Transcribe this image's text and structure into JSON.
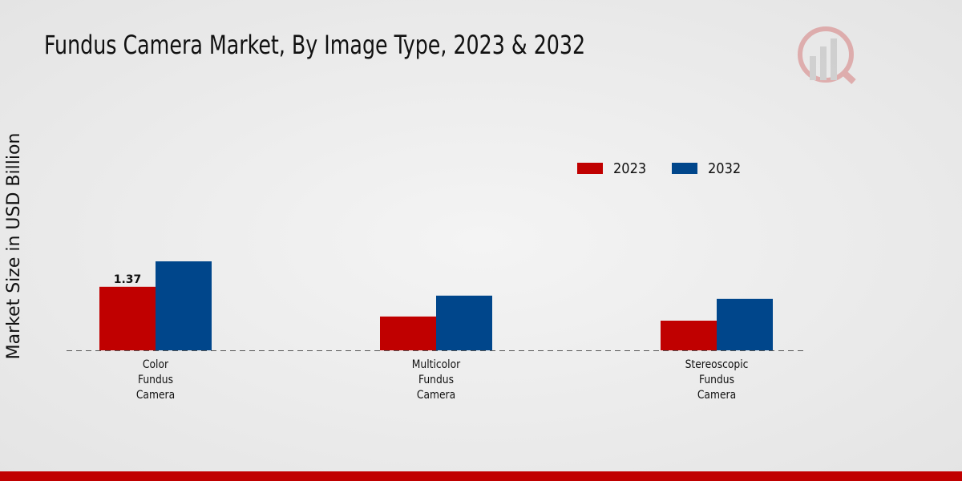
{
  "chart_data": {
    "type": "bar",
    "title": "Fundus Camera Market, By Image Type, 2023 & 2032",
    "y_label": "Market Size in USD Billion",
    "categories": [
      "Color Fundus Camera",
      "Multicolor Fundus Camera",
      "Stereoscopic Fundus Camera"
    ],
    "series": [
      {
        "name": "2023",
        "color": "#c00000",
        "values": [
          1.37,
          0.73,
          0.64
        ]
      },
      {
        "name": "2032",
        "color": "#00468b",
        "values": [
          1.92,
          1.18,
          1.11
        ]
      }
    ],
    "legend": "top-right"
  }
}
